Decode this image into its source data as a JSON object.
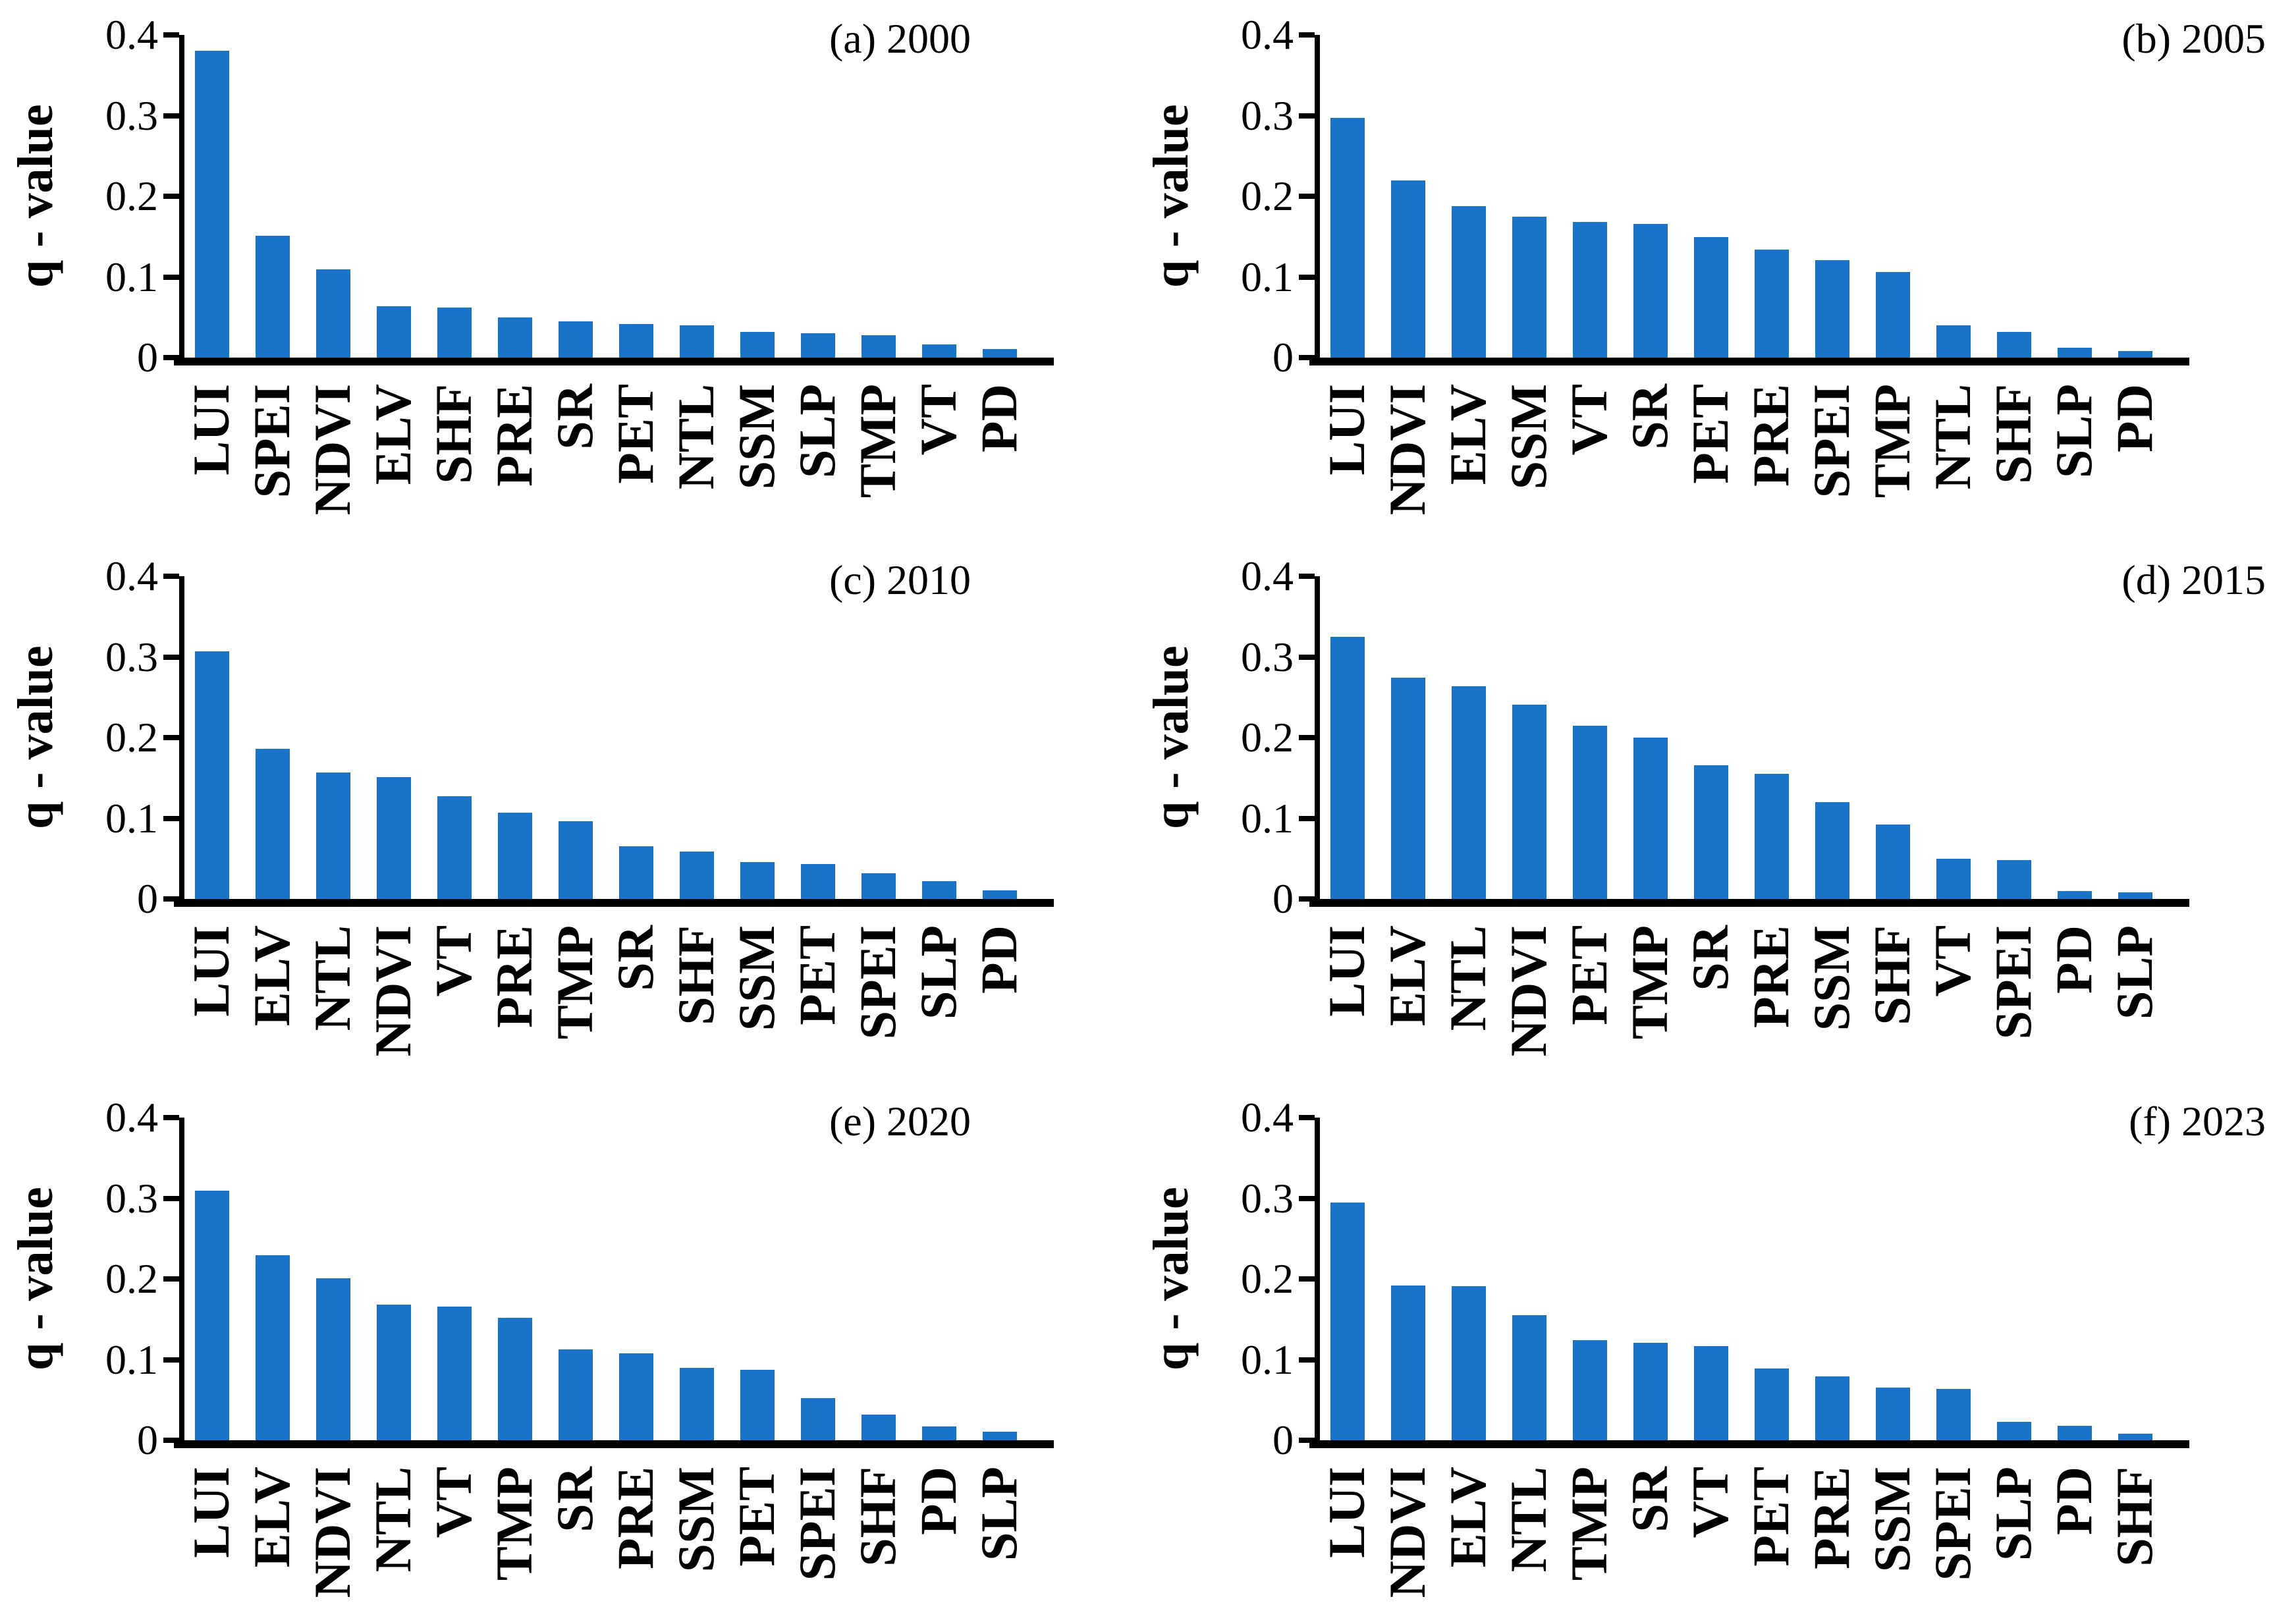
{
  "figure": {
    "ylabel": "q - value",
    "ytick_labels": [
      "0.4",
      "0.3",
      "0.2",
      "0.1",
      "0"
    ],
    "bar_color": "#1973C9",
    "axis_color": "#000000"
  },
  "chart_data": [
    {
      "type": "bar",
      "panel": "a",
      "year": "2000",
      "panel_label": "(a) 2000",
      "ylabel": "q - value",
      "ylim": [
        0,
        0.4
      ],
      "yticks": [
        0,
        0.1,
        0.2,
        0.3,
        0.4
      ],
      "grid": false,
      "legend": "none",
      "categories": [
        "LUI",
        "SPEI",
        "NDVI",
        "ELV",
        "SHF",
        "PRE",
        "SR",
        "PET",
        "NTL",
        "SSM",
        "SLP",
        "TMP",
        "VT",
        "PD"
      ],
      "values": [
        0.38,
        0.151,
        0.109,
        0.064,
        0.062,
        0.05,
        0.045,
        0.042,
        0.04,
        0.032,
        0.03,
        0.028,
        0.016,
        0.011
      ]
    },
    {
      "type": "bar",
      "panel": "b",
      "year": "2005",
      "panel_label": "(b) 2005",
      "ylabel": "q - value",
      "ylim": [
        0,
        0.4
      ],
      "yticks": [
        0,
        0.1,
        0.2,
        0.3,
        0.4
      ],
      "grid": false,
      "legend": "none",
      "categories": [
        "LUI",
        "NDVI",
        "ELV",
        "SSM",
        "VT",
        "SR",
        "PET",
        "PRE",
        "SPEI",
        "TMP",
        "NTL",
        "SHF",
        "SLP",
        "PD"
      ],
      "values": [
        0.297,
        0.22,
        0.188,
        0.175,
        0.168,
        0.166,
        0.149,
        0.134,
        0.121,
        0.106,
        0.04,
        0.032,
        0.012,
        0.008
      ]
    },
    {
      "type": "bar",
      "panel": "c",
      "year": "2010",
      "panel_label": "(c) 2010",
      "ylabel": "q - value",
      "ylim": [
        0,
        0.4
      ],
      "yticks": [
        0,
        0.1,
        0.2,
        0.3,
        0.4
      ],
      "grid": false,
      "legend": "none",
      "categories": [
        "LUI",
        "ELV",
        "NTL",
        "NDVI",
        "VT",
        "PRE",
        "TMP",
        "SR",
        "SHF",
        "SSM",
        "PET",
        "SPEI",
        "SLP",
        "PD"
      ],
      "values": [
        0.307,
        0.186,
        0.157,
        0.151,
        0.127,
        0.107,
        0.096,
        0.065,
        0.059,
        0.046,
        0.043,
        0.032,
        0.022,
        0.011
      ]
    },
    {
      "type": "bar",
      "panel": "d",
      "year": "2015",
      "panel_label": "(d) 2015",
      "ylabel": "q - value",
      "ylim": [
        0,
        0.4
      ],
      "yticks": [
        0,
        0.1,
        0.2,
        0.3,
        0.4
      ],
      "grid": false,
      "legend": "none",
      "categories": [
        "LUI",
        "ELV",
        "NTL",
        "NDVI",
        "PET",
        "TMP",
        "SR",
        "PRE",
        "SSM",
        "SHF",
        "VT",
        "SPEI",
        "PD",
        "SLP"
      ],
      "values": [
        0.325,
        0.274,
        0.264,
        0.241,
        0.215,
        0.2,
        0.166,
        0.155,
        0.12,
        0.092,
        0.05,
        0.048,
        0.01,
        0.008
      ]
    },
    {
      "type": "bar",
      "panel": "e",
      "year": "2020",
      "panel_label": "(e) 2020",
      "ylabel": "q - value",
      "ylim": [
        0,
        0.4
      ],
      "yticks": [
        0,
        0.1,
        0.2,
        0.3,
        0.4
      ],
      "grid": false,
      "legend": "none",
      "categories": [
        "LUI",
        "ELV",
        "NDVI",
        "NTL",
        "VT",
        "TMP",
        "SR",
        "PRE",
        "SSM",
        "PET",
        "SPEI",
        "SHF",
        "PD",
        "SLP"
      ],
      "values": [
        0.309,
        0.229,
        0.201,
        0.168,
        0.166,
        0.152,
        0.113,
        0.108,
        0.09,
        0.087,
        0.052,
        0.032,
        0.017,
        0.011
      ]
    },
    {
      "type": "bar",
      "panel": "f",
      "year": "2023",
      "panel_label": "(f) 2023",
      "ylabel": "q - value",
      "ylim": [
        0,
        0.4
      ],
      "yticks": [
        0,
        0.1,
        0.2,
        0.3,
        0.4
      ],
      "grid": false,
      "legend": "none",
      "categories": [
        "LUI",
        "NDVI",
        "ELV",
        "NTL",
        "TMP",
        "SR",
        "VT",
        "PET",
        "PRE",
        "SSM",
        "SPEI",
        "SLP",
        "PD",
        "SHF"
      ],
      "values": [
        0.295,
        0.192,
        0.191,
        0.155,
        0.124,
        0.121,
        0.117,
        0.089,
        0.079,
        0.065,
        0.064,
        0.023,
        0.018,
        0.008
      ]
    }
  ]
}
